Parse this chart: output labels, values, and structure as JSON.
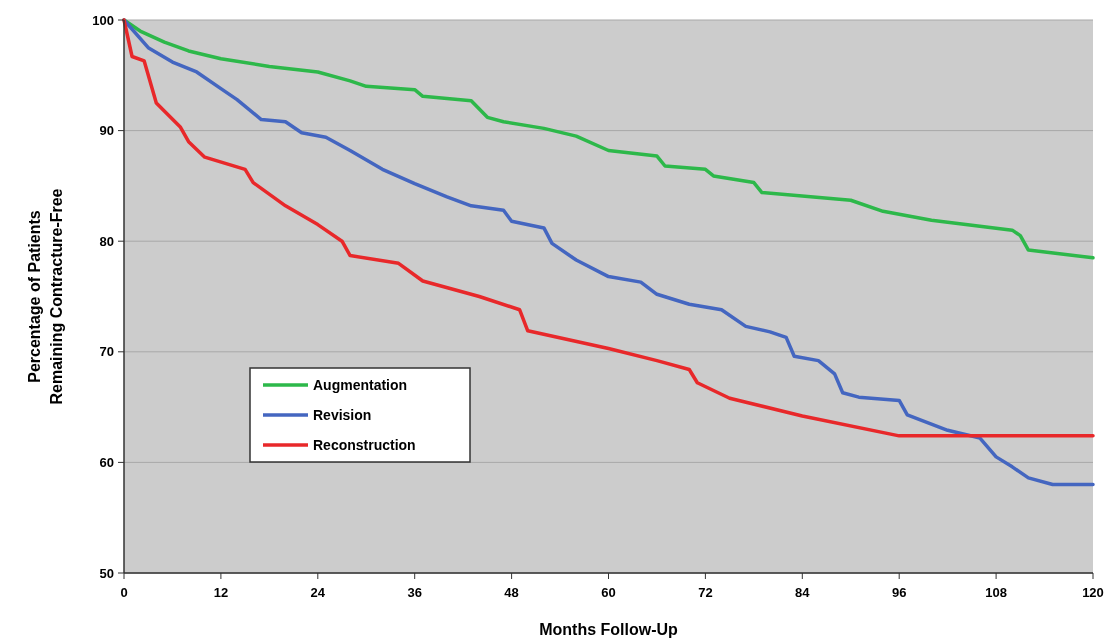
{
  "chart_data": {
    "type": "line",
    "xlabel": "Months Follow-Up",
    "ylabel": "Percentage of Patients\nRemaining Contracture-Free",
    "xlim": [
      0,
      120
    ],
    "xticks": [
      0,
      12,
      24,
      36,
      48,
      60,
      72,
      84,
      96,
      108,
      120
    ],
    "ylim": [
      50,
      100
    ],
    "yticks": [
      50,
      60,
      70,
      80,
      90,
      100
    ],
    "grid": "y",
    "legend": "left",
    "marker": "none",
    "line_style": "solid",
    "series": [
      {
        "name": "Augmentation",
        "color": "#2db84a",
        "x": [
          0,
          2,
          5,
          8,
          12,
          18,
          24,
          28,
          30,
          36,
          37,
          43,
          45,
          47,
          52,
          56,
          60,
          66,
          67,
          72,
          73,
          78,
          79,
          90,
          94,
          100,
          110,
          111,
          112,
          120
        ],
        "values": [
          100,
          99,
          98,
          97.2,
          96.5,
          95.8,
          95.3,
          94.5,
          94,
          93.7,
          93.1,
          92.7,
          91.2,
          90.8,
          90.2,
          89.5,
          88.2,
          87.7,
          86.8,
          86.5,
          85.9,
          85.3,
          84.4,
          83.7,
          82.7,
          81.9,
          81,
          80.5,
          79.2,
          78.5
        ]
      },
      {
        "name": "Revision",
        "color": "#4466c0",
        "x": [
          0,
          3,
          6,
          9,
          12,
          14,
          17,
          20,
          22,
          25,
          28,
          32,
          36,
          40,
          43,
          47,
          48,
          52,
          53,
          56,
          60,
          64,
          66,
          70,
          74,
          77,
          80,
          82,
          83,
          86,
          88,
          89,
          91,
          96,
          97,
          102,
          106,
          108,
          110,
          112,
          115,
          120
        ],
        "values": [
          100,
          97.5,
          96.2,
          95.3,
          93.8,
          92.8,
          91,
          90.8,
          89.8,
          89.4,
          88.2,
          86.5,
          85.2,
          84,
          83.2,
          82.8,
          81.8,
          81.2,
          79.8,
          78.3,
          76.8,
          76.3,
          75.2,
          74.3,
          73.8,
          72.3,
          71.8,
          71.3,
          69.6,
          69.2,
          68,
          66.3,
          65.9,
          65.6,
          64.3,
          62.9,
          62.2,
          60.5,
          59.6,
          58.6,
          58,
          58
        ]
      },
      {
        "name": "Reconstruction",
        "color": "#e8282a",
        "x": [
          0,
          1,
          2.5,
          4,
          7,
          8,
          10,
          15,
          16,
          20,
          24,
          27,
          28,
          34,
          37,
          44,
          49,
          50,
          60,
          66,
          70,
          71,
          75,
          84,
          96,
          120
        ],
        "values": [
          100,
          96.7,
          96.3,
          92.5,
          90.3,
          89,
          87.6,
          86.5,
          85.3,
          83.2,
          81.5,
          80,
          78.7,
          78,
          76.4,
          75,
          73.8,
          71.9,
          70.3,
          69.2,
          68.4,
          67.2,
          65.8,
          64.2,
          62.4,
          62.4
        ]
      }
    ]
  }
}
